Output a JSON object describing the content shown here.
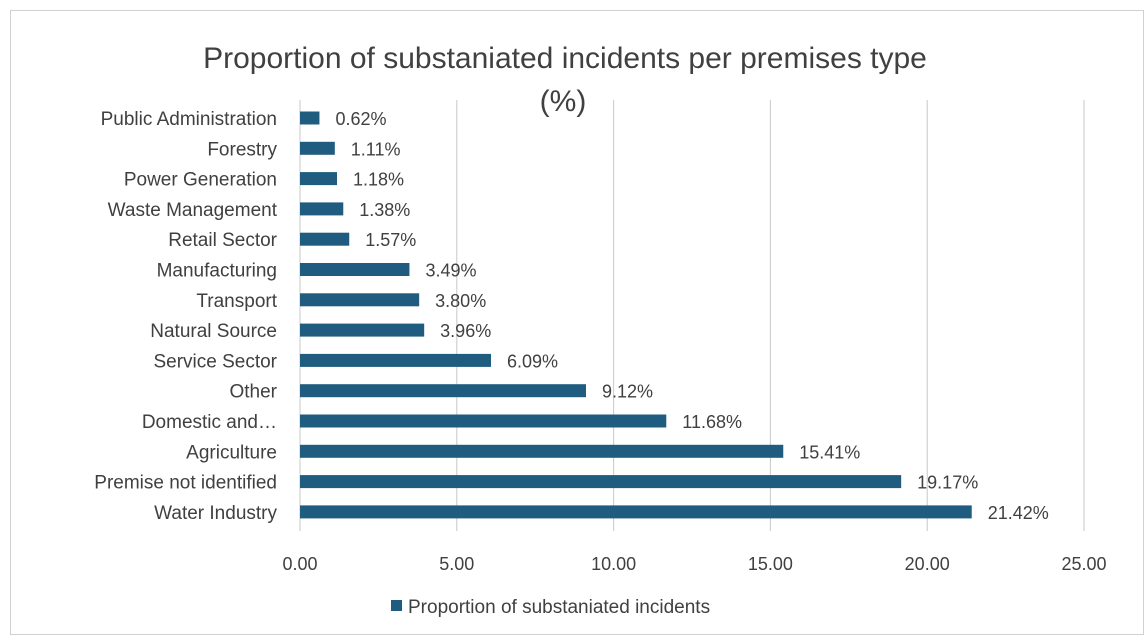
{
  "chart_data": {
    "type": "bar",
    "orientation": "horizontal",
    "title_line1": "Proportion of substaniated incidents per premises type",
    "title_line2": "(%)",
    "categories": [
      "Public Administration",
      "Forestry",
      "Power Generation",
      "Waste Management",
      "Retail Sector",
      "Manufacturing",
      "Transport",
      "Natural Source",
      "Service Sector",
      "Other",
      "Domestic and…",
      "Agriculture",
      "Premise not identified",
      "Water Industry"
    ],
    "series": [
      {
        "name": "Proportion of substaniated incidents",
        "values": [
          0.62,
          1.11,
          1.18,
          1.38,
          1.57,
          3.49,
          3.8,
          3.96,
          6.09,
          9.12,
          11.68,
          15.41,
          19.17,
          21.42
        ],
        "data_labels": [
          "0.62%",
          "1.11%",
          "1.18%",
          "1.38%",
          "1.57%",
          "3.49%",
          "3.80%",
          "3.96%",
          "6.09%",
          "9.12%",
          "11.68%",
          "15.41%",
          "19.17%",
          "21.42%"
        ]
      }
    ],
    "x_ticks": [
      "0.00",
      "5.00",
      "10.00",
      "15.00",
      "20.00",
      "25.00"
    ],
    "xlim": [
      0,
      25
    ],
    "grid": "vertical major gridlines",
    "legend_position": "bottom",
    "colors": {
      "bar": "#1f5c80",
      "grid": "#c8c8c8",
      "text": "#404040"
    }
  }
}
